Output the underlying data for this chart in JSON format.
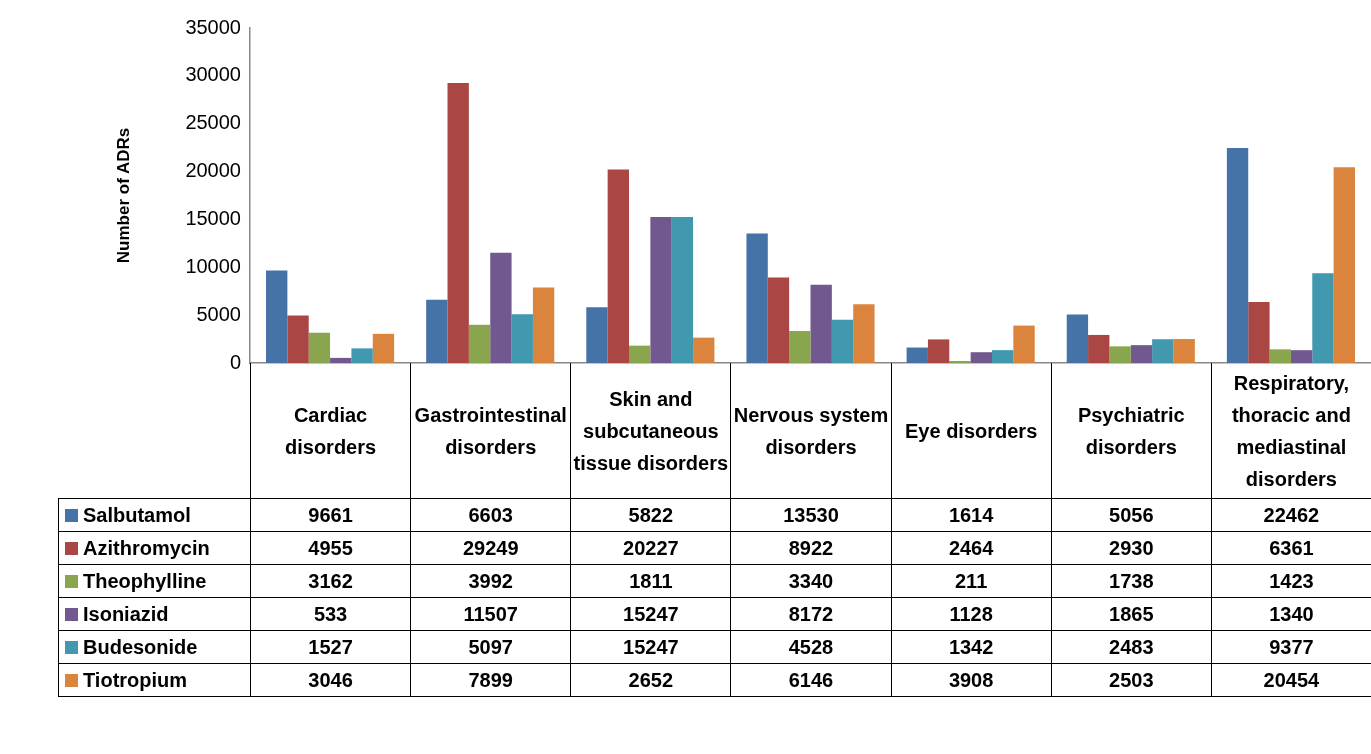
{
  "chart_data": {
    "type": "bar",
    "ylabel": "Number of ADRs",
    "categories": [
      "Cardiac disorders",
      "Gastrointestinal disorders",
      "Skin and subcutaneous tissue disorders",
      "Nervous system disorders",
      "Eye disorders",
      "Psychiatric disorders",
      "Respiratory, thoracic and mediastinal disorders"
    ],
    "series": [
      {
        "name": "Salbutamol",
        "color": "#4572a7",
        "values": [
          9661,
          6603,
          5822,
          13530,
          1614,
          5056,
          22462
        ]
      },
      {
        "name": "Azithromycin",
        "color": "#aa4643",
        "values": [
          4955,
          29249,
          20227,
          8922,
          2464,
          2930,
          6361
        ]
      },
      {
        "name": "Theophylline",
        "color": "#89a54e",
        "values": [
          3162,
          3992,
          1811,
          3340,
          211,
          1738,
          1423
        ]
      },
      {
        "name": "Isoniazid",
        "color": "#71588f",
        "values": [
          533,
          11507,
          15247,
          8172,
          1128,
          1865,
          1340
        ]
      },
      {
        "name": "Budesonide",
        "color": "#4198af",
        "values": [
          1527,
          5097,
          15247,
          4528,
          1342,
          2483,
          9377
        ]
      },
      {
        "name": "Tiotropium",
        "color": "#db843d",
        "values": [
          3046,
          7899,
          2652,
          6146,
          3908,
          2503,
          20454
        ]
      }
    ],
    "ylim": [
      0,
      35000
    ],
    "yticks": [
      0,
      5000,
      10000,
      15000,
      20000,
      25000,
      30000,
      35000
    ],
    "grid": false,
    "legend": "bottom",
    "data_labels": true
  }
}
